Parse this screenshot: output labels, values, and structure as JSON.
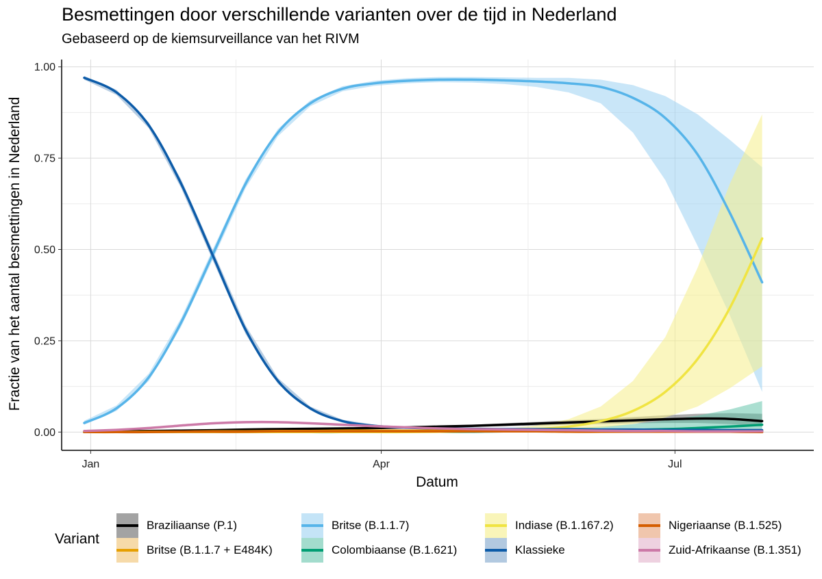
{
  "chart_data": {
    "type": "line",
    "title": "Besmettingen door verschillende varianten over de tijd in Nederland",
    "subtitle": "Gebaseerd op de kiemsurveillance van het RIVM",
    "xlabel": "Datum",
    "ylabel": "Fractie van het aantal besmettingen in Nederland",
    "x_ticks": [
      "Jan",
      "Apr",
      "Jul"
    ],
    "x_tick_dates": [
      "2021-01-01",
      "2021-04-01",
      "2021-07-01"
    ],
    "y_ticks": [
      "0.00",
      "0.25",
      "0.50",
      "0.75",
      "1.00"
    ],
    "ylim": [
      -0.05,
      1.02
    ],
    "xlim": [
      "2020-12-23",
      "2021-08-13"
    ],
    "grid": true,
    "legend_title": "Variant",
    "legend_position": "bottom",
    "x": [
      "2020-12-30",
      "2021-01-09",
      "2021-01-19",
      "2021-01-29",
      "2021-02-08",
      "2021-02-18",
      "2021-02-28",
      "2021-03-10",
      "2021-03-20",
      "2021-03-30",
      "2021-04-09",
      "2021-04-19",
      "2021-04-29",
      "2021-05-09",
      "2021-05-19",
      "2021-05-29",
      "2021-06-08",
      "2021-06-18",
      "2021-06-28",
      "2021-07-08",
      "2021-07-18",
      "2021-07-28"
    ],
    "series": [
      {
        "name": "Braziliaanse (P.1)",
        "color": "#000000",
        "fill": "#666666",
        "values": [
          0.0,
          0.002,
          0.003,
          0.004,
          0.005,
          0.007,
          0.008,
          0.009,
          0.01,
          0.011,
          0.013,
          0.015,
          0.017,
          0.02,
          0.023,
          0.026,
          0.029,
          0.032,
          0.035,
          0.037,
          0.036,
          0.03
        ],
        "lower": [
          0.0,
          0.001,
          0.002,
          0.003,
          0.004,
          0.005,
          0.006,
          0.007,
          0.008,
          0.009,
          0.01,
          0.012,
          0.014,
          0.016,
          0.018,
          0.02,
          0.022,
          0.024,
          0.025,
          0.025,
          0.022,
          0.015
        ],
        "upper": [
          0.001,
          0.003,
          0.004,
          0.005,
          0.007,
          0.009,
          0.01,
          0.011,
          0.012,
          0.013,
          0.015,
          0.018,
          0.02,
          0.024,
          0.028,
          0.032,
          0.036,
          0.041,
          0.046,
          0.05,
          0.052,
          0.05
        ]
      },
      {
        "name": "Britse (B.1.1.7 + E484K)",
        "color": "#E69F00",
        "fill": "#F0C270",
        "values": [
          0.0,
          0.0,
          0.001,
          0.001,
          0.002,
          0.002,
          0.003,
          0.003,
          0.004,
          0.004,
          0.004,
          0.004,
          0.004,
          0.004,
          0.003,
          0.003,
          0.003,
          0.002,
          0.002,
          0.002,
          0.001,
          0.001
        ],
        "lower": [
          0.0,
          0.0,
          0.0,
          0.001,
          0.001,
          0.001,
          0.002,
          0.002,
          0.003,
          0.003,
          0.003,
          0.003,
          0.003,
          0.002,
          0.002,
          0.002,
          0.001,
          0.001,
          0.001,
          0.0,
          0.0,
          0.0
        ],
        "upper": [
          0.001,
          0.001,
          0.002,
          0.002,
          0.003,
          0.003,
          0.004,
          0.004,
          0.005,
          0.005,
          0.005,
          0.005,
          0.005,
          0.005,
          0.005,
          0.004,
          0.004,
          0.004,
          0.004,
          0.004,
          0.004,
          0.004
        ]
      },
      {
        "name": "Britse (B.1.1.7)",
        "color": "#56B4E9",
        "fill": "#9CD2F2",
        "values": [
          0.025,
          0.065,
          0.15,
          0.3,
          0.49,
          0.68,
          0.82,
          0.9,
          0.94,
          0.955,
          0.962,
          0.965,
          0.965,
          0.963,
          0.96,
          0.955,
          0.945,
          0.915,
          0.86,
          0.76,
          0.6,
          0.41
        ],
        "lower": [
          0.02,
          0.058,
          0.14,
          0.288,
          0.476,
          0.668,
          0.81,
          0.892,
          0.933,
          0.948,
          0.955,
          0.958,
          0.957,
          0.953,
          0.945,
          0.93,
          0.9,
          0.82,
          0.69,
          0.51,
          0.32,
          0.11
        ],
        "upper": [
          0.031,
          0.073,
          0.16,
          0.312,
          0.504,
          0.692,
          0.83,
          0.908,
          0.947,
          0.962,
          0.969,
          0.972,
          0.972,
          0.971,
          0.97,
          0.97,
          0.965,
          0.95,
          0.92,
          0.87,
          0.8,
          0.725
        ]
      },
      {
        "name": "Colombiaanse (B.1.621)",
        "color": "#009E73",
        "fill": "#66C5AB",
        "values": [
          0.0,
          0.0,
          0.0,
          0.0,
          0.0,
          0.0,
          0.0,
          0.0,
          0.0,
          0.001,
          0.001,
          0.001,
          0.001,
          0.002,
          0.002,
          0.003,
          0.004,
          0.006,
          0.008,
          0.011,
          0.015,
          0.02
        ],
        "lower": [
          0.0,
          0.0,
          0.0,
          0.0,
          0.0,
          0.0,
          0.0,
          0.0,
          0.0,
          0.0,
          0.0,
          0.0,
          0.0,
          0.0,
          0.001,
          0.001,
          0.001,
          0.002,
          0.002,
          0.003,
          0.003,
          0.004
        ],
        "upper": [
          0.0,
          0.0,
          0.0,
          0.0,
          0.0,
          0.001,
          0.001,
          0.001,
          0.001,
          0.002,
          0.002,
          0.003,
          0.004,
          0.005,
          0.007,
          0.01,
          0.015,
          0.022,
          0.032,
          0.045,
          0.062,
          0.085
        ]
      },
      {
        "name": "Indiase (B.1.167.2)",
        "color": "#F0E442",
        "fill": "#F5EE8A",
        "values": [
          0.0,
          0.0,
          0.0,
          0.0,
          0.0,
          0.0,
          0.0,
          0.0,
          0.0,
          0.0,
          0.0,
          0.001,
          0.002,
          0.004,
          0.008,
          0.015,
          0.03,
          0.058,
          0.11,
          0.2,
          0.34,
          0.53
        ],
        "lower": [
          0.0,
          0.0,
          0.0,
          0.0,
          0.0,
          0.0,
          0.0,
          0.0,
          0.0,
          0.0,
          0.0,
          0.0,
          0.001,
          0.002,
          0.004,
          0.007,
          0.012,
          0.022,
          0.04,
          0.07,
          0.12,
          0.18
        ],
        "upper": [
          0.0,
          0.0,
          0.0,
          0.0,
          0.0,
          0.0,
          0.0,
          0.0,
          0.0,
          0.0,
          0.001,
          0.002,
          0.004,
          0.009,
          0.018,
          0.035,
          0.07,
          0.14,
          0.26,
          0.45,
          0.68,
          0.87
        ]
      },
      {
        "name": "Klassieke",
        "color": "#0C5BA8",
        "fill": "#7FA5CC",
        "values": [
          0.97,
          0.93,
          0.84,
          0.68,
          0.48,
          0.28,
          0.14,
          0.065,
          0.03,
          0.017,
          0.012,
          0.01,
          0.009,
          0.008,
          0.008,
          0.008,
          0.007,
          0.007,
          0.006,
          0.006,
          0.005,
          0.005
        ],
        "lower": [
          0.965,
          0.923,
          0.832,
          0.668,
          0.466,
          0.268,
          0.132,
          0.06,
          0.026,
          0.014,
          0.01,
          0.008,
          0.007,
          0.006,
          0.005,
          0.005,
          0.004,
          0.004,
          0.003,
          0.003,
          0.002,
          0.002
        ],
        "upper": [
          0.975,
          0.937,
          0.848,
          0.692,
          0.494,
          0.292,
          0.148,
          0.07,
          0.034,
          0.02,
          0.015,
          0.012,
          0.011,
          0.01,
          0.01,
          0.01,
          0.01,
          0.01,
          0.01,
          0.01,
          0.01,
          0.01
        ]
      },
      {
        "name": "Nigeriaanse (B.1.525)",
        "color": "#D55E00",
        "fill": "#E6A077",
        "values": [
          0.0,
          0.0,
          0.0,
          0.001,
          0.001,
          0.001,
          0.002,
          0.002,
          0.002,
          0.002,
          0.002,
          0.002,
          0.002,
          0.002,
          0.002,
          0.001,
          0.001,
          0.001,
          0.001,
          0.001,
          0.001,
          0.0
        ],
        "lower": [
          0.0,
          0.0,
          0.0,
          0.0,
          0.0,
          0.0,
          0.001,
          0.001,
          0.001,
          0.001,
          0.001,
          0.001,
          0.001,
          0.001,
          0.0,
          0.0,
          0.0,
          0.0,
          0.0,
          0.0,
          0.0,
          0.0
        ],
        "upper": [
          0.001,
          0.001,
          0.001,
          0.002,
          0.002,
          0.002,
          0.003,
          0.003,
          0.003,
          0.003,
          0.003,
          0.003,
          0.003,
          0.003,
          0.003,
          0.003,
          0.003,
          0.003,
          0.003,
          0.003,
          0.003,
          0.003
        ]
      },
      {
        "name": "Zuid-Afrikaanse (B.1.351)",
        "color": "#CC79A7",
        "fill": "#E2B3CC",
        "values": [
          0.003,
          0.006,
          0.011,
          0.018,
          0.024,
          0.027,
          0.027,
          0.024,
          0.02,
          0.016,
          0.013,
          0.01,
          0.008,
          0.007,
          0.006,
          0.005,
          0.004,
          0.003,
          0.003,
          0.002,
          0.002,
          0.002
        ],
        "lower": [
          0.002,
          0.004,
          0.009,
          0.015,
          0.021,
          0.024,
          0.024,
          0.021,
          0.017,
          0.013,
          0.01,
          0.008,
          0.006,
          0.005,
          0.004,
          0.003,
          0.002,
          0.002,
          0.001,
          0.001,
          0.001,
          0.0
        ],
        "upper": [
          0.004,
          0.008,
          0.013,
          0.021,
          0.027,
          0.03,
          0.03,
          0.027,
          0.023,
          0.019,
          0.016,
          0.012,
          0.01,
          0.009,
          0.008,
          0.007,
          0.006,
          0.005,
          0.005,
          0.004,
          0.004,
          0.004
        ]
      }
    ]
  }
}
